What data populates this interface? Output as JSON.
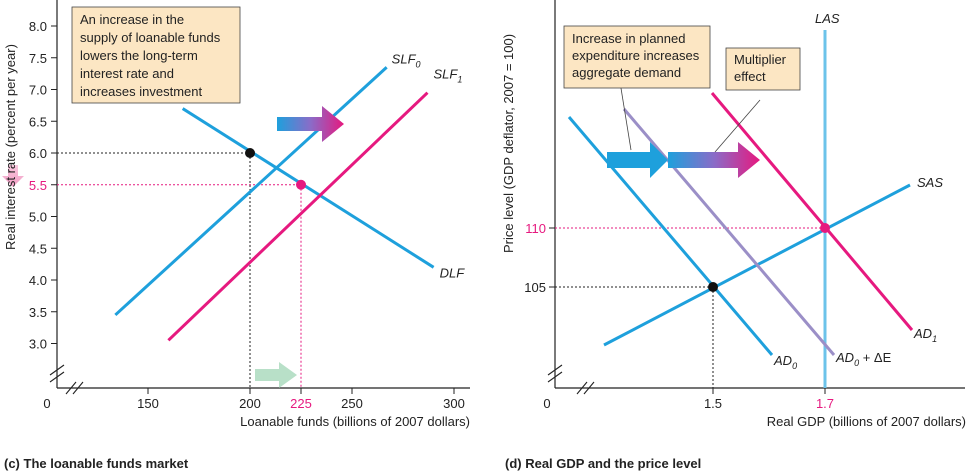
{
  "chart_data": [
    {
      "type": "line",
      "caption": "(c) The loanable funds market",
      "xlabel": "Loanable funds (billions of 2007 dollars)",
      "ylabel": "Real interest rate (percent per year)",
      "x_ticks": [
        "0",
        "150",
        "200",
        "225",
        "250",
        "300"
      ],
      "y_ticks": [
        "3.0",
        "3.5",
        "4.0",
        "4.5",
        "5.0",
        "5.5",
        "6.0",
        "6.5",
        "7.0",
        "7.5",
        "8.0"
      ],
      "series": [
        {
          "name": "DLF",
          "color": "#1ea0dc",
          "points": [
            [
              167,
              6.7
            ],
            [
              290,
              4.2
            ]
          ]
        },
        {
          "name": "SLF",
          "subscript": "0",
          "color": "#1ea0dc",
          "points": [
            [
              134,
              3.45
            ],
            [
              267,
              7.35
            ]
          ]
        },
        {
          "name": "SLF",
          "subscript": "1",
          "color": "#e6197f",
          "points": [
            [
              160,
              3.05
            ],
            [
              287,
              6.95
            ]
          ]
        }
      ],
      "equilibria": [
        {
          "x": 200,
          "y": 6.0,
          "color": "#111111"
        },
        {
          "x": 225,
          "y": 5.5,
          "color": "#e6197f"
        }
      ],
      "annotations": [
        "An increase in the",
        "supply of loanable funds",
        "lowers the long-term",
        "interest rate and",
        "increases investment"
      ]
    },
    {
      "type": "line",
      "caption": "(d) Real GDP and the price level",
      "xlabel": "Real GDP (billions of 2007 dollars)",
      "ylabel": "Price level (GDP deflator, 2007 = 100)",
      "x_ticks": [
        "0",
        "1.5",
        "1.7"
      ],
      "y_ticks": [
        "105",
        "110"
      ],
      "series": [
        {
          "name": "LAS",
          "color": "#6cc3ea"
        },
        {
          "name": "SAS",
          "color": "#1ea0dc"
        },
        {
          "name": "AD",
          "subscript": "0",
          "color": "#1ea0dc"
        },
        {
          "name": "AD",
          "subscript": "0",
          "suffix": " + ΔE",
          "color": "#9b8fc7"
        },
        {
          "name": "AD",
          "subscript": "1",
          "color": "#e6197f"
        }
      ],
      "equilibria": [
        {
          "x": 1.5,
          "y": 105,
          "color": "#111111"
        },
        {
          "x": 1.7,
          "y": 110,
          "color": "#e6197f"
        }
      ],
      "annotations": [
        [
          "Increase in planned",
          "expenditure increases",
          "aggregate demand"
        ],
        [
          "Multiplier",
          "effect"
        ]
      ]
    }
  ]
}
